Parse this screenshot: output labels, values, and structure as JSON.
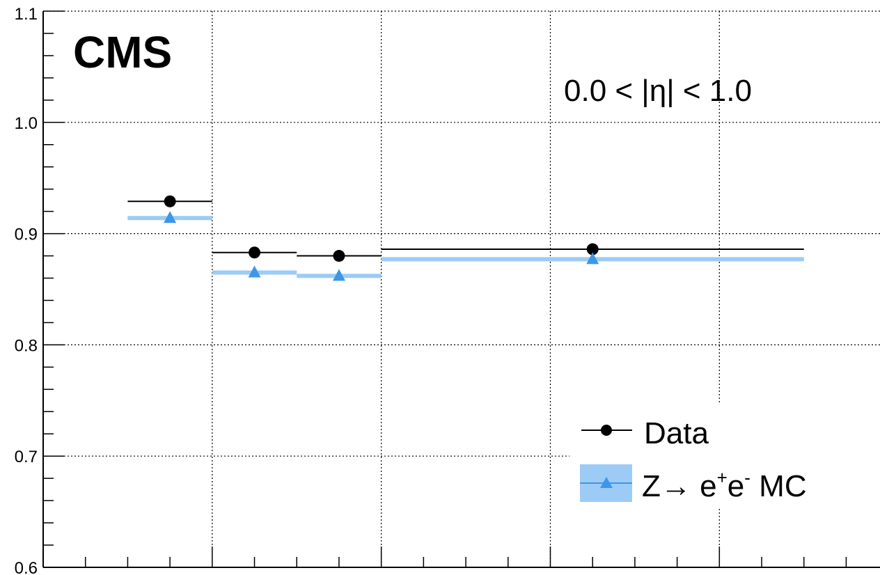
{
  "chart_data": {
    "type": "scatter",
    "title": "",
    "xlabel": "",
    "ylabel": "",
    "ylim": [
      0.6,
      1.1
    ],
    "y_ticks": [
      "0.6",
      "0.7",
      "0.8",
      "0.9",
      "1.0",
      "1.1"
    ],
    "grid": true,
    "legend_position": "bottom-right",
    "annotations": {
      "experiment": "CMS",
      "eta_range": "0.0 < |η| < 1.0"
    },
    "bins": [
      {
        "x_low": 1,
        "x_high": 2
      },
      {
        "x_low": 2,
        "x_high": 3
      },
      {
        "x_low": 3,
        "x_high": 4
      },
      {
        "x_low": 4,
        "x_high": 9
      }
    ],
    "series": [
      {
        "name": "Data",
        "marker": "circle",
        "color": "#000000",
        "values": [
          0.929,
          0.883,
          0.88,
          0.886
        ]
      },
      {
        "name": "Z→ e+e- MC",
        "marker": "triangle",
        "color": "#3e96e8",
        "band_color": "#9ccbf5",
        "values": [
          0.914,
          0.865,
          0.862,
          0.877
        ],
        "legend_parts": [
          "Z",
          "→ e",
          "+",
          "e",
          "-",
          " MC"
        ]
      }
    ]
  }
}
